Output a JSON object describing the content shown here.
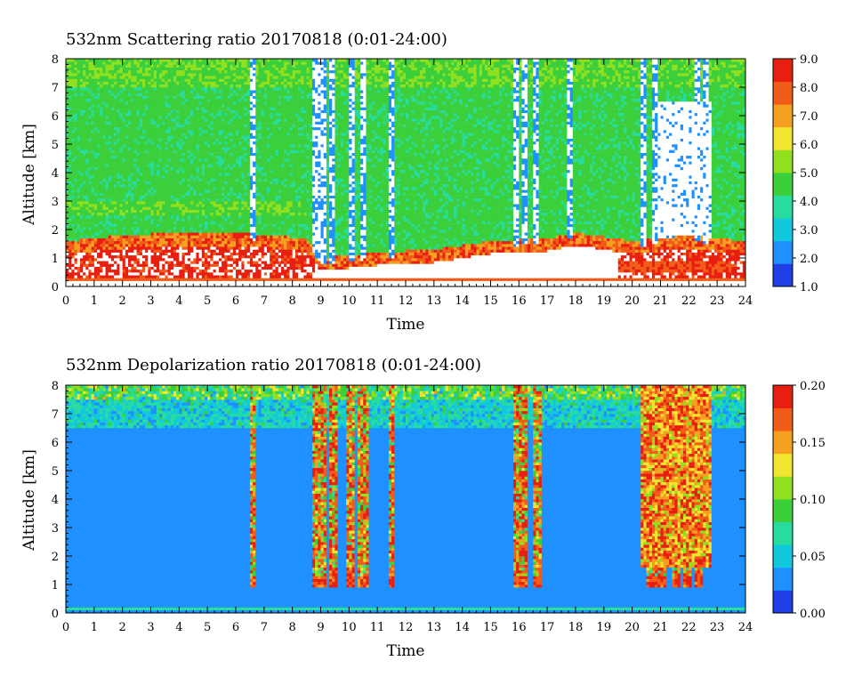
{
  "colors": {
    "colormap": [
      "#1f40e6",
      "#1e90ff",
      "#12c8dc",
      "#28dca0",
      "#3ccf3c",
      "#90e020",
      "#f0e630",
      "#f5a020",
      "#f25c19",
      "#e81e10"
    ],
    "no_data": "#ffffff"
  },
  "chart_data": [
    {
      "type": "heatmap",
      "title": "532nm Scattering ratio  20170818 (0:01-24:00)",
      "xlabel": "Time",
      "ylabel": "Altitude [km]",
      "xlim": [
        0,
        24
      ],
      "ylim": [
        0,
        8
      ],
      "x_ticks": [
        "0",
        "1",
        "2",
        "3",
        "4",
        "5",
        "6",
        "7",
        "8",
        "9",
        "10",
        "11",
        "12",
        "13",
        "14",
        "15",
        "16",
        "17",
        "18",
        "19",
        "20",
        "21",
        "22",
        "23",
        "24"
      ],
      "y_ticks": [
        "0",
        "1",
        "2",
        "3",
        "4",
        "5",
        "6",
        "7",
        "8"
      ],
      "colorbar": {
        "range": [
          1.0,
          9.0
        ],
        "ticks": [
          "1.0",
          "2.0",
          "3.0",
          "4.0",
          "5.0",
          "6.0",
          "7.0",
          "8.0",
          "9.0"
        ]
      },
      "features": {
        "background_level": 4.5,
        "boundary_layer_top_km": [
          [
            0,
            1.6
          ],
          [
            2,
            1.8
          ],
          [
            4,
            1.9
          ],
          [
            6,
            1.9
          ],
          [
            8.5,
            1.7
          ],
          [
            9,
            1.0
          ],
          [
            11,
            1.2
          ],
          [
            13,
            1.3
          ],
          [
            15,
            1.6
          ],
          [
            17,
            1.7
          ],
          [
            18,
            1.9
          ],
          [
            20,
            1.6
          ],
          [
            22,
            1.8
          ],
          [
            24,
            1.6
          ]
        ],
        "cloud_columns_h": [
          6.6,
          8.85,
          9.1,
          9.4,
          10.1,
          10.5,
          11.5,
          15.9,
          16.2,
          16.6,
          17.8,
          20.4,
          20.8,
          22.3,
          22.6
        ]
      }
    },
    {
      "type": "heatmap",
      "title": "532nm Depolarization ratio  20170818 (0:01-24:00)",
      "xlabel": "Time",
      "ylabel": "Altitude [km]",
      "xlim": [
        0,
        24
      ],
      "ylim": [
        0,
        8
      ],
      "x_ticks": [
        "0",
        "1",
        "2",
        "3",
        "4",
        "5",
        "6",
        "7",
        "8",
        "9",
        "10",
        "11",
        "12",
        "13",
        "14",
        "15",
        "16",
        "17",
        "18",
        "19",
        "20",
        "21",
        "22",
        "23",
        "24"
      ],
      "y_ticks": [
        "0",
        "1",
        "2",
        "3",
        "4",
        "5",
        "6",
        "7",
        "8"
      ],
      "colorbar": {
        "range": [
          0.0,
          0.2
        ],
        "ticks": [
          "0.00",
          "0.05",
          "0.10",
          "0.15",
          "0.20"
        ]
      },
      "features": {
        "background_level": 0.03,
        "high_columns_h": [
          6.6,
          8.85,
          9.1,
          9.4,
          10.1,
          10.5,
          11.5,
          15.9,
          16.2,
          16.6,
          20.6,
          21.0,
          21.5,
          22.0,
          22.4
        ]
      }
    }
  ]
}
